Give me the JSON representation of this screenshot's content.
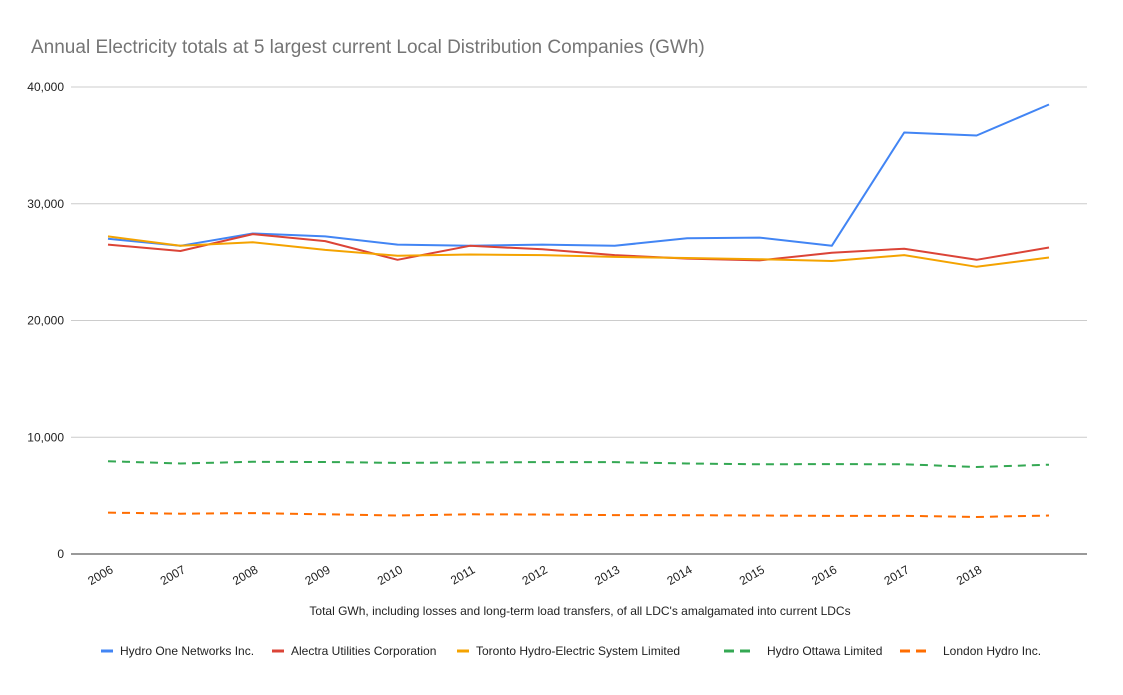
{
  "chart_data": {
    "type": "line",
    "title": "Annual Electricity totals at 5 largest current Local Distribution Companies (GWh)",
    "xlabel": "Total GWh, including losses and long-term load transfers, of all LDC's amalgamated into current LDCs",
    "ylabel": "",
    "ylim": [
      0,
      40000
    ],
    "yticks": [
      0,
      10000,
      20000,
      30000,
      40000
    ],
    "ytick_labels": [
      "0",
      "10,000",
      "20,000",
      "30,000",
      "40,000"
    ],
    "categories": [
      "2006",
      "2007",
      "2008",
      "2009",
      "2010",
      "2011",
      "2012",
      "2013",
      "2014",
      "2015",
      "2016",
      "2017",
      "2018",
      ""
    ],
    "tick_labels": [
      "2006",
      "2007",
      "2008",
      "2009",
      "2010",
      "2011",
      "2012",
      "2013",
      "2014",
      "2015",
      "2016",
      "2017",
      "2018"
    ],
    "grid": true,
    "legend_position": "bottom",
    "series": [
      {
        "name": "Hydro One Networks Inc.",
        "color": "#4285f4",
        "dashed": false,
        "values": [
          27000,
          26400,
          27450,
          27200,
          26500,
          26400,
          26500,
          26400,
          27050,
          27100,
          26400,
          36100,
          35850,
          38500
        ]
      },
      {
        "name": "Alectra Utilities Corporation",
        "color": "#db4437",
        "dashed": false,
        "values": [
          26500,
          25950,
          27400,
          26800,
          25200,
          26400,
          26100,
          25600,
          25300,
          25150,
          25800,
          26150,
          25200,
          26250
        ]
      },
      {
        "name": "Toronto Hydro-Electric System Limited",
        "color": "#f4a300",
        "dashed": false,
        "values": [
          27200,
          26400,
          26700,
          26050,
          25550,
          25650,
          25600,
          25450,
          25350,
          25250,
          25100,
          25600,
          24600,
          25400
        ]
      },
      {
        "name": "Hydro Ottawa Limited",
        "color": "#34a853",
        "dashed": true,
        "values": [
          7950,
          7750,
          7900,
          7880,
          7800,
          7840,
          7870,
          7870,
          7750,
          7680,
          7700,
          7680,
          7450,
          7650
        ]
      },
      {
        "name": "London Hydro Inc.",
        "color": "#ff6d01",
        "dashed": true,
        "values": [
          3550,
          3450,
          3500,
          3400,
          3300,
          3400,
          3380,
          3330,
          3320,
          3300,
          3260,
          3270,
          3170,
          3300
        ]
      }
    ]
  }
}
